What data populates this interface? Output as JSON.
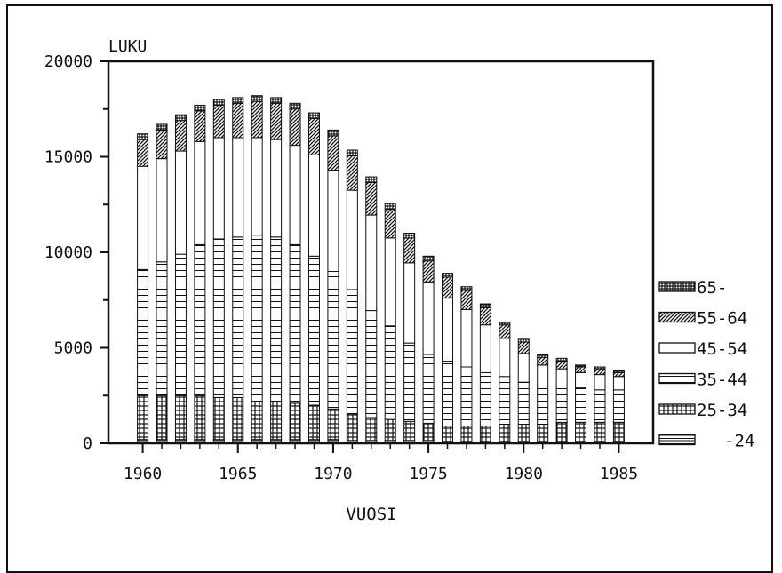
{
  "chart_data": {
    "type": "bar",
    "stacked": true,
    "ylabel": "LUKU",
    "xlabel": "VUOSI",
    "ylim": [
      0,
      20000
    ],
    "xlim": [
      1958.2,
      1986.8
    ],
    "y_ticks": [
      "0",
      "5000",
      "10000",
      "15000",
      "20000"
    ],
    "x_ticks": [
      "1960",
      "1965",
      "1970",
      "1975",
      "1980",
      "1985"
    ],
    "x_tick_values": [
      1960,
      1965,
      1970,
      1975,
      1980,
      1985
    ],
    "legend_position": "right",
    "grid": false,
    "x": [
      1960,
      1961,
      1962,
      1963,
      1964,
      1965,
      1966,
      1967,
      1968,
      1969,
      1970,
      1971,
      1972,
      1973,
      1974,
      1975,
      1976,
      1977,
      1978,
      1979,
      1980,
      1981,
      1982,
      1983,
      1984,
      1985
    ],
    "series": [
      {
        "name": "-24",
        "pattern": "double-hline",
        "values": [
          200,
          200,
          200,
          200,
          200,
          200,
          200,
          200,
          200,
          200,
          200,
          150,
          150,
          150,
          150,
          150,
          100,
          100,
          100,
          100,
          100,
          100,
          100,
          100,
          100,
          100
        ]
      },
      {
        "name": "25-34",
        "pattern": "grid",
        "values": [
          2300,
          2300,
          2300,
          2300,
          2200,
          2200,
          2000,
          2000,
          1900,
          1800,
          1600,
          1400,
          1200,
          1100,
          1000,
          900,
          800,
          800,
          800,
          900,
          900,
          900,
          1000,
          1000,
          1000,
          1000
        ]
      },
      {
        "name": "35-44",
        "pattern": "hlines",
        "values": [
          6600,
          7000,
          7400,
          7900,
          8300,
          8400,
          8700,
          8600,
          8300,
          7800,
          7200,
          6500,
          5600,
          4900,
          4100,
          3600,
          3400,
          3100,
          2800,
          2500,
          2200,
          2000,
          1900,
          1800,
          1700,
          1700
        ]
      },
      {
        "name": "45-54",
        "pattern": "white",
        "values": [
          5400,
          5400,
          5400,
          5400,
          5300,
          5200,
          5100,
          5100,
          5200,
          5300,
          5300,
          5200,
          5000,
          4600,
          4200,
          3800,
          3300,
          3000,
          2500,
          2000,
          1500,
          1100,
          900,
          800,
          800,
          700
        ]
      },
      {
        "name": "55-64",
        "pattern": "diagonal",
        "values": [
          1400,
          1500,
          1600,
          1600,
          1700,
          1800,
          1900,
          1900,
          1900,
          1900,
          1800,
          1800,
          1700,
          1500,
          1300,
          1100,
          1100,
          1000,
          900,
          700,
          600,
          400,
          400,
          300,
          300,
          200
        ]
      },
      {
        "name": "65-",
        "pattern": "dense-grid",
        "values": [
          300,
          300,
          300,
          300,
          300,
          300,
          300,
          300,
          300,
          300,
          300,
          300,
          300,
          300,
          250,
          250,
          200,
          200,
          200,
          150,
          150,
          150,
          150,
          100,
          100,
          100
        ]
      }
    ],
    "colors": {
      "axis": "#111111",
      "ink": "#111111",
      "paper": "#ffffff"
    }
  }
}
